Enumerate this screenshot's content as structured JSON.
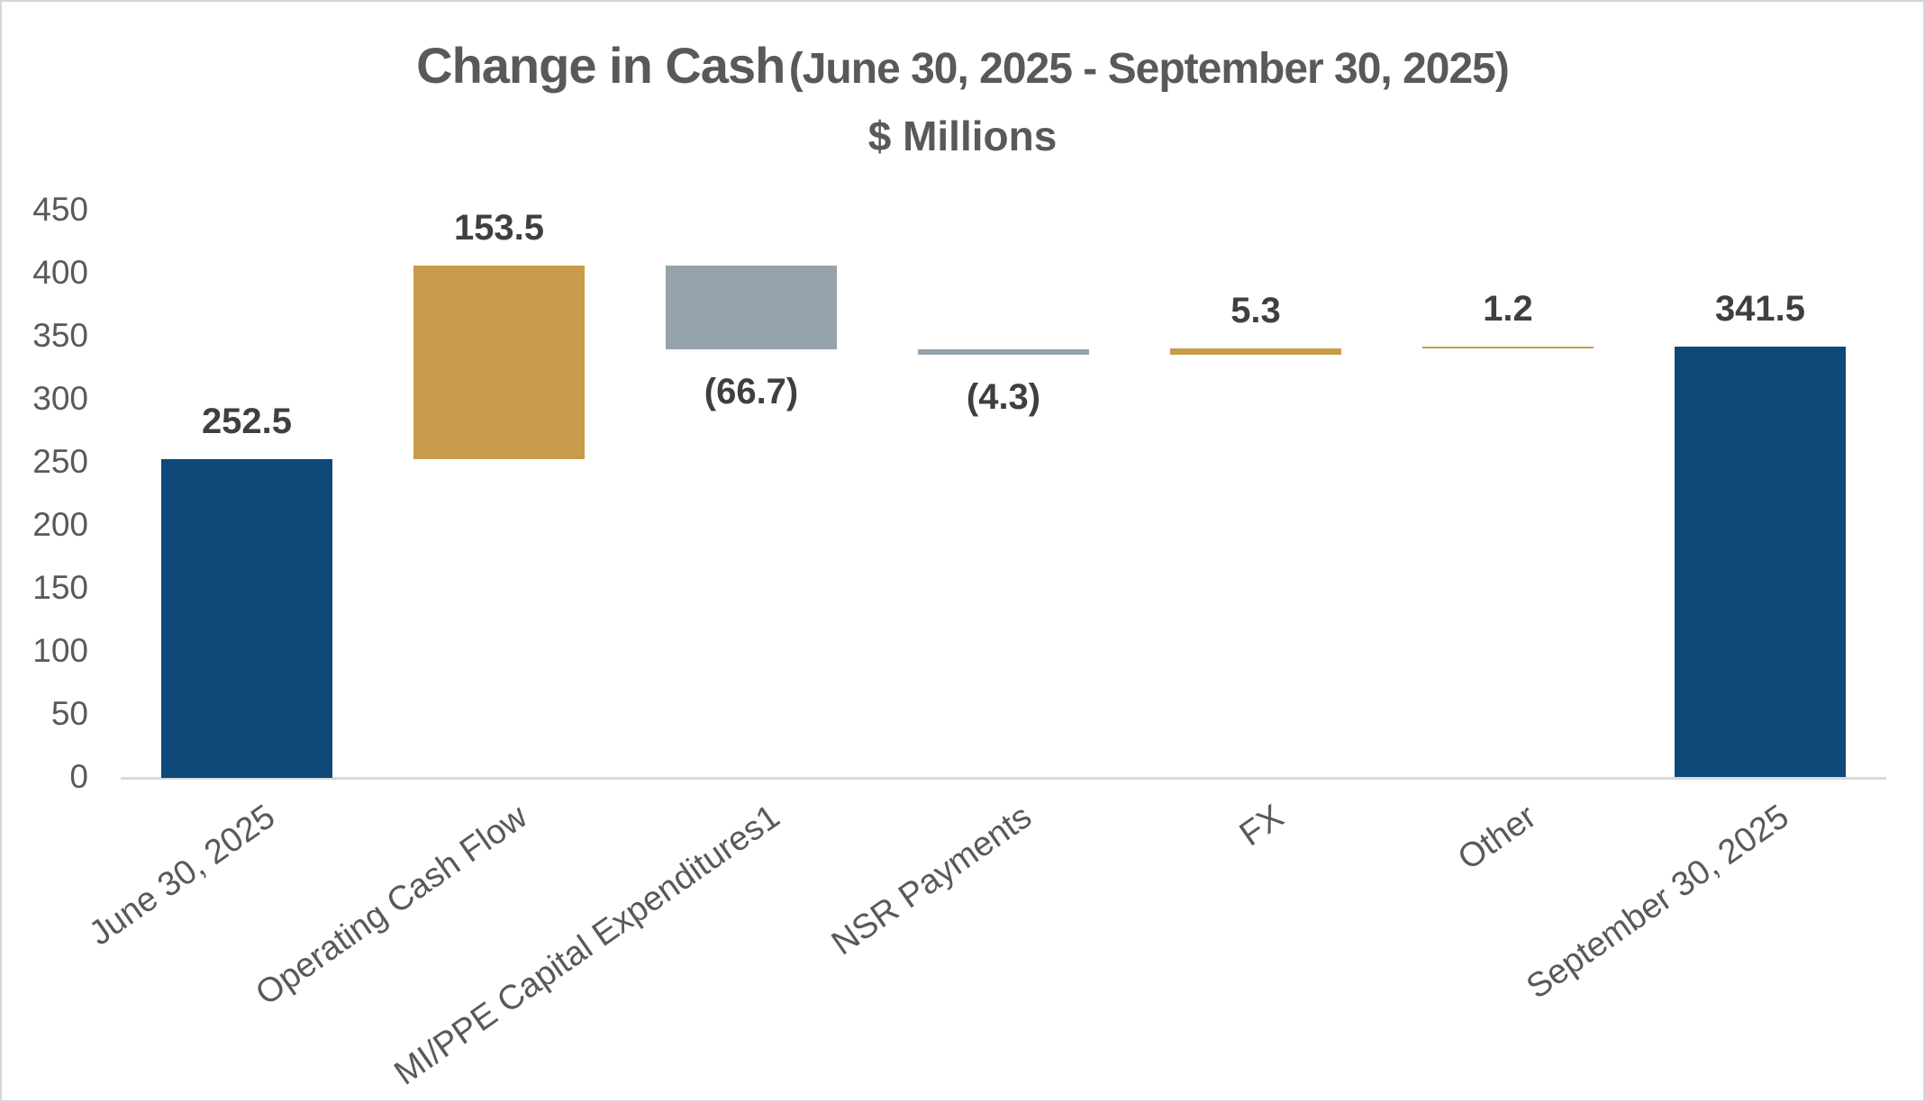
{
  "chart_data": {
    "type": "bar",
    "variant": "waterfall",
    "title": "Change in Cash",
    "title_suffix": "(June 30, 2025 - September 30, 2025)",
    "subtitle": "$ Millions",
    "categories": [
      "June 30, 2025",
      "Operating Cash Flow",
      "MI/PPE Capital Expenditures1",
      "NSR Payments",
      "FX",
      "Other",
      "September 30, 2025"
    ],
    "bars": [
      {
        "category": "June 30, 2025",
        "display_value": "252.5",
        "value": 252.5,
        "start": 0,
        "end": 252.5,
        "role": "total",
        "color_key": "navy",
        "value_label_side": "above"
      },
      {
        "category": "Operating Cash Flow",
        "display_value": "153.5",
        "value": 153.5,
        "start": 252.5,
        "end": 406.0,
        "role": "increase",
        "color_key": "gold",
        "value_label_side": "above"
      },
      {
        "category": "MI/PPE Capital Expenditures1",
        "display_value": "(66.7)",
        "value": -66.7,
        "start": 406.0,
        "end": 339.3,
        "role": "decrease",
        "color_key": "gray",
        "value_label_side": "below"
      },
      {
        "category": "NSR Payments",
        "display_value": "(4.3)",
        "value": -4.3,
        "start": 339.3,
        "end": 335.0,
        "role": "decrease",
        "color_key": "gray",
        "value_label_side": "below"
      },
      {
        "category": "FX",
        "display_value": "5.3",
        "value": 5.3,
        "start": 335.0,
        "end": 340.3,
        "role": "increase",
        "color_key": "gold",
        "value_label_side": "above"
      },
      {
        "category": "Other",
        "display_value": "1.2",
        "value": 1.2,
        "start": 340.3,
        "end": 341.5,
        "role": "increase",
        "color_key": "gold",
        "value_label_side": "above"
      },
      {
        "category": "September 30, 2025",
        "display_value": "341.5",
        "value": 341.5,
        "start": 0,
        "end": 341.5,
        "role": "total",
        "color_key": "navy",
        "value_label_side": "above"
      }
    ],
    "ylim": [
      0,
      450
    ],
    "y_ticks": [
      450,
      400,
      350,
      300,
      250,
      200,
      150,
      100,
      50,
      0
    ],
    "grid": false,
    "legend": "none",
    "colors": {
      "navy": "#0d4878",
      "gold": "#c69b49",
      "gray": "#95a3ad",
      "axis_line": "#d9d9d9",
      "title_text": "#595959",
      "tick_text": "#595959",
      "category_text": "#595959",
      "data_label_text": "#3f3f3f"
    }
  }
}
